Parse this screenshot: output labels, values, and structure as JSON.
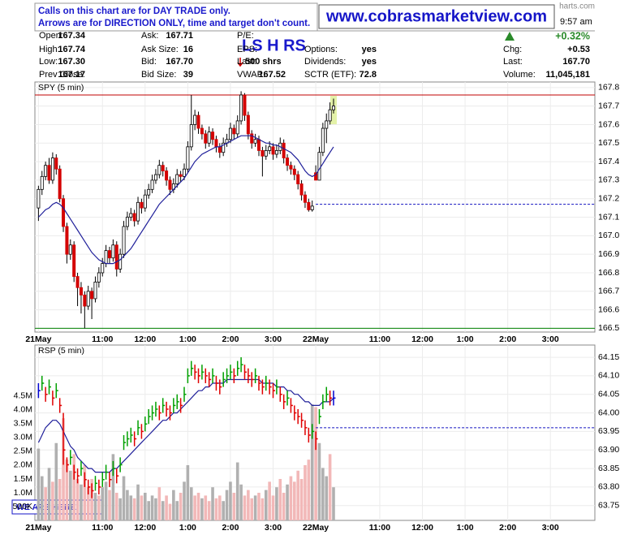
{
  "header": {
    "notice": [
      "Calls on this chart are for DAY TRADE only.",
      "Arrows are for DIRECTION ONLY, time and target don't count."
    ],
    "banner": "www.cobrasmarketview.com",
    "brand": "harts.com",
    "time": "9:57 am",
    "change_pct": "+0.32%",
    "signal": "LS H RS",
    "quote": [
      {
        "label": "Open:",
        "value": "167.34"
      },
      {
        "label": "High:",
        "value": "167.74"
      },
      {
        "label": "Low:",
        "value": "167.30"
      },
      {
        "label": "Prev Close:",
        "value": "167.17"
      },
      {
        "label": "Ask:",
        "value": "167.71"
      },
      {
        "label": "Ask Size:",
        "value": "16"
      },
      {
        "label": "Bid:",
        "value": "167.70"
      },
      {
        "label": "Bid Size:",
        "value": "39"
      },
      {
        "label": "P/E:"
      },
      {
        "label": "EPS:"
      },
      {
        "label": "Last:",
        "value": "500 shrs"
      },
      {
        "label": "VWAP:",
        "value": "167.52"
      },
      {
        "label": "Options:",
        "value": "yes"
      },
      {
        "label": "Dividends:",
        "value": "yes"
      },
      {
        "label": "SCTR (ETF):",
        "value": "72.8"
      },
      {
        "label": "Chg:",
        "value": "+0.53"
      },
      {
        "label": "Last:",
        "value": "167.70"
      },
      {
        "label": "Volume:",
        "value": "11,045,181"
      }
    ]
  },
  "chart_data": [
    {
      "type": "candlestick",
      "title": "SPY (5 min)",
      "open": [
        167.15,
        167.25,
        167.32,
        167.38,
        167.3,
        167.42,
        167.36,
        167.2,
        167.05,
        166.9,
        166.95,
        166.78,
        166.72,
        166.68,
        166.62,
        166.7,
        166.66,
        166.75,
        166.8,
        166.85,
        166.92,
        166.88,
        166.95,
        166.82,
        166.9,
        167.05,
        167.1,
        167.12,
        167.08,
        167.18,
        167.15,
        167.22,
        167.25,
        167.3,
        167.33,
        167.38,
        167.35,
        167.3,
        167.25,
        167.28,
        167.33,
        167.32,
        167.36,
        167.48,
        167.6,
        167.65,
        167.58,
        167.55,
        167.5,
        167.56,
        167.52,
        167.48,
        167.45,
        167.5,
        167.52,
        167.58,
        167.55,
        167.62,
        167.76,
        167.65,
        167.55,
        167.5,
        167.52,
        167.46,
        167.43,
        167.46,
        167.48,
        167.44,
        167.46,
        167.5,
        167.42,
        167.38,
        167.36,
        167.33,
        167.28,
        167.22,
        167.18,
        167.14,
        167.34,
        167.3,
        167.45,
        167.58,
        167.62,
        167.68
      ],
      "high": [
        167.27,
        167.35,
        167.4,
        167.42,
        167.45,
        167.44,
        167.38,
        167.22,
        167.07,
        166.98,
        166.97,
        166.8,
        166.75,
        166.7,
        166.73,
        166.72,
        166.78,
        166.83,
        166.88,
        166.95,
        166.94,
        166.98,
        166.97,
        166.93,
        167.08,
        167.13,
        167.15,
        167.14,
        167.21,
        167.2,
        167.25,
        167.28,
        167.33,
        167.36,
        167.41,
        167.4,
        167.37,
        167.32,
        167.31,
        167.36,
        167.35,
        167.39,
        167.51,
        167.76,
        167.68,
        167.67,
        167.6,
        167.57,
        167.59,
        167.58,
        167.54,
        167.5,
        167.53,
        167.55,
        167.61,
        167.6,
        167.65,
        167.78,
        167.77,
        167.67,
        167.57,
        167.55,
        167.54,
        167.48,
        167.49,
        167.51,
        167.5,
        167.49,
        167.53,
        167.52,
        167.44,
        167.4,
        167.38,
        167.35,
        167.3,
        167.24,
        167.2,
        167.19,
        167.38,
        167.48,
        167.61,
        167.66,
        167.72,
        167.74
      ],
      "low": [
        167.08,
        167.22,
        167.3,
        167.28,
        167.28,
        167.33,
        167.18,
        167.02,
        166.85,
        166.87,
        166.75,
        166.62,
        166.58,
        166.5,
        166.6,
        166.55,
        166.64,
        166.72,
        166.78,
        166.83,
        166.85,
        166.86,
        166.78,
        166.8,
        166.88,
        167.03,
        167.08,
        167.05,
        167.06,
        167.12,
        167.13,
        167.2,
        167.23,
        167.28,
        167.31,
        167.32,
        167.27,
        167.22,
        167.23,
        167.26,
        167.29,
        167.3,
        167.34,
        167.46,
        167.57,
        167.55,
        167.52,
        167.47,
        167.48,
        167.49,
        167.45,
        167.42,
        167.43,
        167.48,
        167.5,
        167.52,
        167.53,
        167.6,
        167.62,
        167.52,
        167.47,
        167.48,
        167.43,
        167.32,
        167.41,
        167.44,
        167.41,
        167.42,
        167.44,
        167.39,
        167.35,
        167.33,
        167.3,
        167.25,
        167.19,
        167.15,
        167.13,
        167.13,
        167.3,
        167.3,
        167.43,
        167.5,
        167.6,
        167.66
      ],
      "close": [
        167.25,
        167.32,
        167.38,
        167.3,
        167.42,
        167.36,
        167.2,
        167.05,
        166.9,
        166.95,
        166.78,
        166.72,
        166.68,
        166.62,
        166.7,
        166.66,
        166.75,
        166.8,
        166.85,
        166.92,
        166.88,
        166.95,
        166.82,
        166.9,
        167.05,
        167.1,
        167.12,
        167.08,
        167.18,
        167.15,
        167.22,
        167.25,
        167.3,
        167.33,
        167.38,
        167.35,
        167.3,
        167.25,
        167.28,
        167.33,
        167.32,
        167.36,
        167.48,
        167.6,
        167.65,
        167.58,
        167.55,
        167.5,
        167.56,
        167.52,
        167.48,
        167.45,
        167.5,
        167.52,
        167.58,
        167.55,
        167.62,
        167.76,
        167.65,
        167.55,
        167.5,
        167.52,
        167.46,
        167.43,
        167.46,
        167.48,
        167.44,
        167.46,
        167.5,
        167.42,
        167.38,
        167.36,
        167.33,
        167.28,
        167.22,
        167.18,
        167.14,
        167.16,
        167.3,
        167.45,
        167.58,
        167.62,
        167.68,
        167.7
      ],
      "ma_values": [
        167.1,
        167.12,
        167.14,
        167.15,
        167.17,
        167.18,
        167.17,
        167.15,
        167.12,
        167.09,
        167.06,
        167.03,
        167.0,
        166.97,
        166.94,
        166.91,
        166.89,
        166.87,
        166.86,
        166.85,
        166.85,
        166.85,
        166.86,
        166.87,
        166.89,
        166.91,
        166.93,
        166.96,
        166.99,
        167.02,
        167.05,
        167.08,
        167.11,
        167.14,
        167.17,
        167.19,
        167.21,
        167.23,
        167.25,
        167.27,
        167.29,
        167.31,
        167.34,
        167.37,
        167.4,
        167.42,
        167.44,
        167.45,
        167.46,
        167.47,
        167.48,
        167.48,
        167.49,
        167.5,
        167.51,
        167.52,
        167.53,
        167.54,
        167.54,
        167.54,
        167.54,
        167.53,
        167.52,
        167.51,
        167.5,
        167.5,
        167.49,
        167.49,
        167.48,
        167.47,
        167.46,
        167.45,
        167.43,
        167.41,
        167.38,
        167.35,
        167.33,
        167.32,
        167.33,
        167.36,
        167.39,
        167.42,
        167.45,
        167.48
      ],
      "ma_color": "#1f1f9a",
      "up_color": "#ffffff",
      "down_color": "#d40000",
      "wick_color": "#000000",
      "reference_lines": [
        {
          "value": 167.76,
          "color": "#c00000"
        },
        {
          "value": 166.5,
          "color": "#008000"
        },
        {
          "value": 167.17,
          "color": "#1010c0",
          "dash": true,
          "start": 78
        }
      ],
      "xlim": [
        -1,
        156.5
      ],
      "xticks": [
        {
          "value": 0,
          "label": "21May"
        },
        {
          "value": 18,
          "label": "11:00"
        },
        {
          "value": 30,
          "label": "12:00"
        },
        {
          "value": 42,
          "label": "1:00"
        },
        {
          "value": 54,
          "label": "2:00"
        },
        {
          "value": 66,
          "label": "3:00"
        },
        {
          "value": 78,
          "label": "22May"
        },
        {
          "value": 96,
          "label": "11:00"
        },
        {
          "value": 108,
          "label": "12:00"
        },
        {
          "value": 120,
          "label": "1:00"
        },
        {
          "value": 132,
          "label": "2:00"
        },
        {
          "value": 144,
          "label": "3:00"
        }
      ],
      "ylim": [
        166.48,
        167.83
      ],
      "yticks": [
        167.8,
        167.7,
        167.6,
        167.5,
        167.4,
        167.3,
        167.2,
        167.1,
        {
          "value": 167,
          "label": "167.0"
        },
        166.9,
        166.8,
        166.7,
        166.6,
        166.5
      ],
      "grid": true
    },
    {
      "type": "hlc_volume",
      "title": "RSP (5 min)",
      "high": [
        64.08,
        64.1,
        64.07,
        64.09,
        64.06,
        64.08,
        64.04,
        64.0,
        63.88,
        63.9,
        63.86,
        63.85,
        63.87,
        63.84,
        63.82,
        63.81,
        63.83,
        63.82,
        63.84,
        63.86,
        63.84,
        63.87,
        63.85,
        63.88,
        63.94,
        63.95,
        63.96,
        63.95,
        63.98,
        63.97,
        63.99,
        64.01,
        64.02,
        64.03,
        64.02,
        64.04,
        64.03,
        64.02,
        64.04,
        64.05,
        64.04,
        64.07,
        64.12,
        64.14,
        64.13,
        64.12,
        64.13,
        64.12,
        64.11,
        64.12,
        64.1,
        64.09,
        64.11,
        64.12,
        64.13,
        64.12,
        64.14,
        64.15,
        64.13,
        64.12,
        64.11,
        64.12,
        64.1,
        64.09,
        64.1,
        64.09,
        64.08,
        64.09,
        64.07,
        64.05,
        64.06,
        64.04,
        64.02,
        64.01,
        64.0,
        63.98,
        63.96,
        63.97,
        63.95,
        64.01,
        64.05,
        64.07,
        64.06,
        64.06
      ],
      "low": [
        64.04,
        64.06,
        64.03,
        64.05,
        64.02,
        64.04,
        64.0,
        63.86,
        63.84,
        63.86,
        63.82,
        63.81,
        63.83,
        63.8,
        63.78,
        63.77,
        63.79,
        63.78,
        63.8,
        63.82,
        63.8,
        63.83,
        63.81,
        63.84,
        63.9,
        63.91,
        63.92,
        63.91,
        63.94,
        63.93,
        63.95,
        63.97,
        63.98,
        63.99,
        63.98,
        64.0,
        63.99,
        63.98,
        64.0,
        64.01,
        64.0,
        64.03,
        64.08,
        64.1,
        64.09,
        64.08,
        64.09,
        64.08,
        64.07,
        64.08,
        64.06,
        64.05,
        64.07,
        64.08,
        64.09,
        64.08,
        64.1,
        64.11,
        64.09,
        64.08,
        64.07,
        64.08,
        64.06,
        64.05,
        64.06,
        64.05,
        64.04,
        64.05,
        64.03,
        64.01,
        64.02,
        64.0,
        63.98,
        63.97,
        63.96,
        63.94,
        63.92,
        63.93,
        63.9,
        63.97,
        64.01,
        64.03,
        64.02,
        64.02
      ],
      "close": [
        64.06,
        64.08,
        64.05,
        64.07,
        64.04,
        64.06,
        64.02,
        63.9,
        63.86,
        63.88,
        63.84,
        63.83,
        63.85,
        63.82,
        63.8,
        63.79,
        63.81,
        63.8,
        63.82,
        63.84,
        63.82,
        63.85,
        63.83,
        63.86,
        63.92,
        63.93,
        63.94,
        63.93,
        63.96,
        63.95,
        63.97,
        63.99,
        64.0,
        64.01,
        64.0,
        64.02,
        64.01,
        64.0,
        64.02,
        64.03,
        64.02,
        64.05,
        64.1,
        64.12,
        64.11,
        64.1,
        64.11,
        64.1,
        64.09,
        64.1,
        64.08,
        64.07,
        64.09,
        64.1,
        64.11,
        64.1,
        64.12,
        64.13,
        64.11,
        64.1,
        64.09,
        64.1,
        64.08,
        64.07,
        64.08,
        64.07,
        64.06,
        64.07,
        64.05,
        64.03,
        64.04,
        64.02,
        64.0,
        63.99,
        63.98,
        63.96,
        63.94,
        63.95,
        63.93,
        63.99,
        64.03,
        64.05,
        64.04,
        64.04
      ],
      "ma_values": [
        63.92,
        63.94,
        63.96,
        63.97,
        63.98,
        63.98,
        63.97,
        63.95,
        63.93,
        63.91,
        63.9,
        63.88,
        63.87,
        63.86,
        63.85,
        63.85,
        63.84,
        63.84,
        63.84,
        63.84,
        63.84,
        63.85,
        63.85,
        63.86,
        63.87,
        63.88,
        63.89,
        63.9,
        63.91,
        63.92,
        63.93,
        63.94,
        63.95,
        63.96,
        63.97,
        63.98,
        63.98,
        63.99,
        64.0,
        64.0,
        64.01,
        64.02,
        64.03,
        64.04,
        64.05,
        64.06,
        64.06,
        64.07,
        64.07,
        64.08,
        64.08,
        64.08,
        64.08,
        64.09,
        64.09,
        64.09,
        64.09,
        64.09,
        64.09,
        64.09,
        64.09,
        64.09,
        64.09,
        64.08,
        64.08,
        64.08,
        64.08,
        64.07,
        64.07,
        64.07,
        64.06,
        64.06,
        64.05,
        64.05,
        64.04,
        64.03,
        64.03,
        64.02,
        64.02,
        64.02,
        64.03,
        64.03,
        64.03,
        64.04
      ],
      "volume": [
        2600000,
        1600000,
        1200000,
        1900000,
        1400000,
        2800000,
        1500000,
        3700000,
        2200000,
        1800000,
        2400000,
        1500000,
        1300000,
        2000000,
        1200000,
        1500000,
        1000000,
        900000,
        1200000,
        1400000,
        1100000,
        2400000,
        1000000,
        800000,
        1600000,
        1100000,
        900000,
        800000,
        1300000,
        900000,
        1000000,
        700000,
        900000,
        800000,
        1200000,
        700000,
        900000,
        600000,
        1100000,
        700000,
        1000000,
        1400000,
        2000000,
        1200000,
        900000,
        1000000,
        800000,
        900000,
        700000,
        1200000,
        800000,
        900000,
        700000,
        1100000,
        1400000,
        1000000,
        2100000,
        1300000,
        900000,
        1100000,
        800000,
        900000,
        1000000,
        800000,
        1100000,
        1400000,
        900000,
        1200000,
        1500000,
        1000000,
        1300000,
        1600000,
        1400000,
        1800000,
        1500000,
        2000000,
        2200000,
        4200000,
        4100000,
        2800000,
        1900000,
        1600000,
        2400000,
        1200000
      ],
      "ma_color": "#1f1f9a",
      "up_color": "#00a000",
      "down_color": "#e00000",
      "flat_color": "#0000d0",
      "volume_up_color": "#b0b0b0",
      "volume_down_color": "#f2b8b8",
      "reference_lines": [
        {
          "value": 63.96,
          "color": "#1010c0",
          "dash": true,
          "start": 78
        }
      ],
      "annotation": "WE ARE HERE!",
      "xlim": [
        -1,
        156.5
      ],
      "xticks": [
        {
          "value": 0,
          "label": "21May"
        },
        {
          "value": 18,
          "label": "11:00"
        },
        {
          "value": 30,
          "label": "12:00"
        },
        {
          "value": 42,
          "label": "1:00"
        },
        {
          "value": 54,
          "label": "2:00"
        },
        {
          "value": 66,
          "label": "3:00"
        },
        {
          "value": 78,
          "label": "22May"
        },
        {
          "value": 96,
          "label": "11:00"
        },
        {
          "value": 108,
          "label": "12:00"
        },
        {
          "value": 120,
          "label": "1:00"
        },
        {
          "value": 132,
          "label": "2:00"
        },
        {
          "value": 144,
          "label": "3:00"
        }
      ],
      "ylim": [
        63.71,
        64.183
      ],
      "yticks": [
        64.15,
        {
          "value": 64.1,
          "label": "64.10"
        },
        64.05,
        {
          "value": 64,
          "label": "64.00"
        },
        63.95,
        {
          "value": 63.9,
          "label": "63.90"
        },
        63.85,
        {
          "value": 63.8,
          "label": "63.80"
        },
        63.75
      ],
      "y2lim": [
        0,
        6350000
      ],
      "y2ticks": [
        {
          "value": 500000,
          "label": "500K"
        },
        {
          "value": 1000000,
          "label": "1.0M"
        },
        {
          "value": 1500000,
          "label": "1.5M"
        },
        {
          "value": 2000000,
          "label": "2.0M"
        },
        {
          "value": 2500000,
          "label": "2.5M"
        },
        {
          "value": 3000000,
          "label": "3.0M"
        },
        {
          "value": 3500000,
          "label": "3.5M"
        },
        {
          "value": 4000000,
          "label": "4.0M"
        },
        {
          "value": 4500000,
          "label": "4.5M"
        }
      ],
      "y2_side": "left",
      "grid": true
    }
  ]
}
